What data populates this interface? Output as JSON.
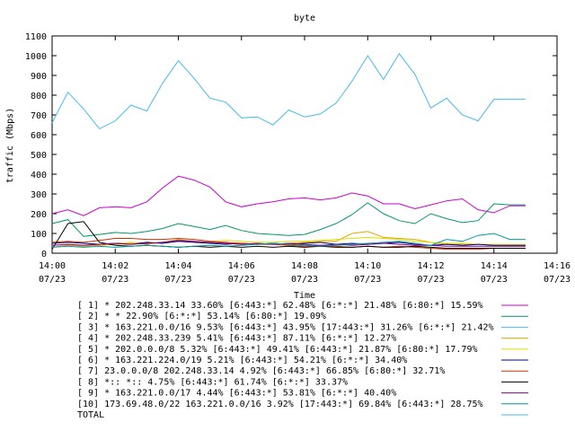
{
  "chart_data": {
    "type": "line",
    "title": "byte",
    "xlabel": "Time",
    "ylabel": "traffic (Mbps)",
    "ylim": [
      0,
      1100
    ],
    "xlim": [
      "14:00",
      "14:16"
    ],
    "grid": false,
    "legend_position": "bottom",
    "y_ticks": [
      "0",
      "100",
      "200",
      "300",
      "400",
      "500",
      "600",
      "700",
      "800",
      "900",
      "1000",
      "1100"
    ],
    "x_ticks": [
      {
        "time": "14:00",
        "date": "07/23"
      },
      {
        "time": "14:02",
        "date": "07/23"
      },
      {
        "time": "14:04",
        "date": "07/23"
      },
      {
        "time": "14:06",
        "date": "07/23"
      },
      {
        "time": "14:08",
        "date": "07/23"
      },
      {
        "time": "14:10",
        "date": "07/23"
      },
      {
        "time": "14:12",
        "date": "07/23"
      },
      {
        "time": "14:14",
        "date": "07/23"
      },
      {
        "time": "14:16",
        "date": "07/23"
      }
    ],
    "x": [
      "14:00",
      "14:00:30",
      "14:01",
      "14:01:30",
      "14:02",
      "14:02:30",
      "14:03",
      "14:03:30",
      "14:04",
      "14:04:30",
      "14:05",
      "14:05:30",
      "14:06",
      "14:06:30",
      "14:07",
      "14:07:30",
      "14:08",
      "14:08:30",
      "14:09",
      "14:09:30",
      "14:10",
      "14:10:30",
      "14:11",
      "14:11:30",
      "14:12",
      "14:12:30",
      "14:13",
      "14:13:30",
      "14:14",
      "14:14:30",
      "14:15"
    ],
    "series": [
      {
        "name": "[ 1] * 202.248.33.14 33.60%  [6:443:*] 62.48% [6:*:*] 21.48% [6:80:*] 15.59%",
        "color": "#cc00cc",
        "values": [
          200,
          220,
          190,
          230,
          235,
          230,
          260,
          330,
          390,
          370,
          335,
          260,
          235,
          250,
          260,
          275,
          280,
          270,
          280,
          305,
          290,
          250,
          250,
          225,
          245,
          265,
          275,
          220,
          205,
          240,
          240
        ]
      },
      {
        "name": "[ 2] * * 22.90%  [6:*:*] 53.14% [6:80:*] 19.09%",
        "color": "#009966",
        "values": [
          150,
          170,
          85,
          95,
          105,
          100,
          110,
          125,
          150,
          135,
          120,
          140,
          115,
          100,
          95,
          90,
          95,
          120,
          150,
          195,
          255,
          200,
          165,
          150,
          200,
          175,
          155,
          165,
          250,
          245,
          245
        ]
      },
      {
        "name": "[ 3] * 163.221.0.0/16 9.53%  [6:443:*] 43.95% [17:443:*] 31.26% [6:*:*] 21.42%",
        "color": "#44bbee",
        "values": [
          660,
          815,
          730,
          630,
          670,
          750,
          720,
          860,
          975,
          885,
          785,
          765,
          685,
          690,
          650,
          725,
          690,
          705,
          760,
          870,
          1000,
          880,
          1010,
          905,
          735,
          785,
          700,
          670,
          780,
          780,
          780
        ]
      },
      {
        "name": "[ 4] * 202.248.33.239 5.41%  [6:443:*] 87.11% [6:*:*] 12.27%",
        "color": "#e6a800",
        "values": [
          30,
          40,
          35,
          40,
          45,
          50,
          45,
          55,
          70,
          60,
          55,
          50,
          45,
          50,
          45,
          50,
          55,
          60,
          60,
          100,
          110,
          80,
          75,
          70,
          55,
          45,
          45,
          45,
          40,
          40,
          40
        ]
      },
      {
        "name": "[ 5] * 202.0.0.0/8 5.32%  [6:443:*] 49.41% [6:443:*] 21.87% [6:80:*] 17.79%",
        "color": "#dddd00",
        "values": [
          40,
          45,
          40,
          45,
          50,
          55,
          50,
          55,
          60,
          55,
          60,
          65,
          60,
          55,
          55,
          60,
          60,
          65,
          70,
          75,
          80,
          75,
          70,
          60,
          55,
          50,
          50,
          45,
          45,
          45,
          45
        ]
      },
      {
        "name": "[ 6] * 163.221.224.0/19 5.21%  [6:443:*] 54.21% [6:*:*] 34.40%",
        "color": "#000088",
        "values": [
          50,
          55,
          50,
          45,
          50,
          45,
          55,
          50,
          60,
          55,
          50,
          45,
          50,
          45,
          50,
          45,
          50,
          55,
          45,
          50,
          45,
          50,
          55,
          45,
          40,
          45,
          40,
          45,
          40,
          40,
          40
        ]
      },
      {
        "name": "[ 7] 23.0.0.0/8 202.248.33.14 4.92%  [6:443:*] 66.85% [6:80:*] 32.71%",
        "color": "#cc3300",
        "values": [
          55,
          60,
          55,
          65,
          75,
          75,
          70,
          70,
          75,
          70,
          60,
          55,
          50,
          45,
          45,
          40,
          35,
          40,
          35,
          30,
          35,
          30,
          35,
          30,
          25,
          20,
          20,
          20,
          25,
          25,
          25
        ]
      },
      {
        "name": "[ 8] *:: *:: 4.75%  [6:443:*] 61.74% [6:*:*] 33.37%",
        "color": "#000000",
        "values": [
          20,
          150,
          160,
          55,
          40,
          35,
          40,
          35,
          30,
          35,
          30,
          35,
          30,
          35,
          30,
          35,
          30,
          35,
          30,
          30,
          35,
          30,
          30,
          35,
          30,
          25,
          25,
          25,
          25,
          25,
          25
        ]
      },
      {
        "name": "[ 9] * 163.221.0.0/17 4.44%  [6:443:*] 53.81% [6:*:*] 40.40%",
        "color": "#880088",
        "values": [
          40,
          45,
          40,
          45,
          50,
          45,
          50,
          55,
          65,
          60,
          55,
          50,
          45,
          50,
          45,
          50,
          45,
          40,
          45,
          40,
          45,
          50,
          45,
          40,
          40,
          35,
          35,
          35,
          35,
          35,
          35
        ]
      },
      {
        "name": "[10] 173.69.48.0/22 163.221.0.0/16 3.92%  [17:443:*] 69.84% [6:443:*] 28.75%",
        "color": "#009999",
        "values": [
          30,
          35,
          30,
          35,
          30,
          35,
          40,
          35,
          30,
          35,
          40,
          35,
          40,
          45,
          50,
          45,
          40,
          35,
          40,
          45,
          50,
          55,
          60,
          50,
          40,
          70,
          60,
          90,
          100,
          70,
          70
        ]
      }
    ]
  }
}
